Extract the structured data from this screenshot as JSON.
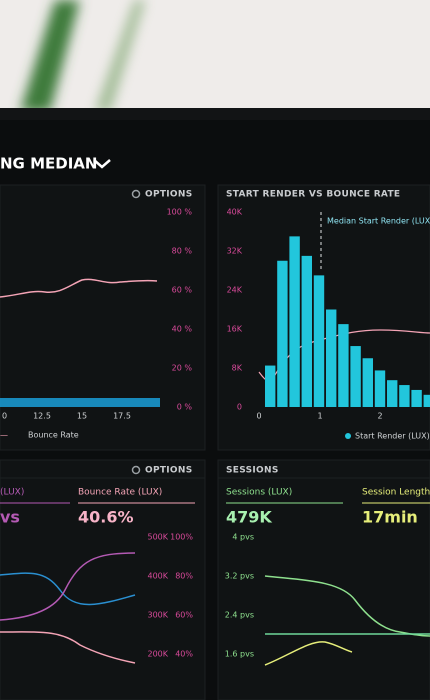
{
  "header": {
    "title": "NG MEDIAN"
  },
  "panels": [
    {
      "options": "OPTIONS",
      "yticks": [
        "100 %",
        "80 %",
        "60 %",
        "40 %",
        "20 %",
        "0 %"
      ],
      "xticks": [
        "0",
        "12.5",
        "15",
        "17.5"
      ],
      "legend": "Bounce Rate"
    },
    {
      "title": "START RENDER VS BOUNCE RATE",
      "yticks": [
        "40K",
        "32K",
        "24K",
        "16K",
        "8K",
        "0"
      ],
      "xticks": [
        "0",
        "1",
        "2"
      ],
      "annotation": "Median Start Render (LUX):",
      "legend": "Start Render (LUX)",
      "histogram": {
        "ylim": [
          0,
          40000
        ],
        "values": [
          8500,
          30000,
          35000,
          31000,
          27000,
          20000,
          17000,
          12500,
          10000,
          7500,
          5500,
          4500,
          3500,
          2500
        ]
      }
    },
    {
      "options": "OPTIONS",
      "metric_1": "(LUX)",
      "value_1": "vs",
      "metric_2": "Bounce Rate (LUX)",
      "value_2": "40.6%",
      "yticks_left": [
        "500K",
        "400K",
        "300K",
        "200K"
      ],
      "yticks_right": [
        "100%",
        "80%",
        "60%",
        "40%"
      ]
    },
    {
      "title": "SESSIONS",
      "metric_1": "Sessions (LUX)",
      "value_1": "479K",
      "metric_2": "Session Length",
      "value_2": "17min",
      "yticks": [
        "4 pvs",
        "3.2 pvs",
        "2.4 pvs",
        "1.6 pvs"
      ]
    }
  ]
}
